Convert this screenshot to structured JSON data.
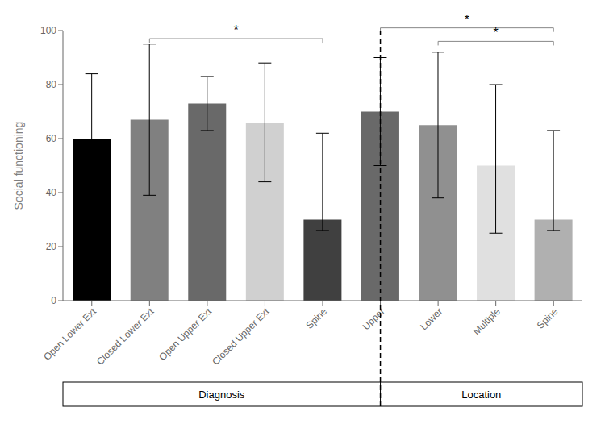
{
  "chart_data": {
    "type": "bar",
    "categories": [
      "Open Lower Ext",
      "Closed Lower Ext",
      "Open Upper Ext",
      "Closed Upper Ext",
      "Spine",
      "Upper",
      "Lower",
      "Multiple",
      "Spine"
    ],
    "values": [
      60,
      67,
      73,
      66,
      30,
      70,
      65,
      50,
      30
    ],
    "errors_upper": [
      24,
      28,
      10,
      22,
      32,
      20,
      27,
      30,
      33
    ],
    "errors_lower": [
      24,
      28,
      10,
      22,
      4,
      20,
      27,
      25,
      4
    ],
    "colors": [
      "#000000",
      "#808080",
      "#696969",
      "#d0d0d0",
      "#404040",
      "#696969",
      "#909090",
      "#e0e0e0",
      "#b0b0b0"
    ],
    "ylabel": "Social functioning",
    "ylim": [
      0,
      100
    ],
    "yticks": [
      0,
      20,
      40,
      60,
      80,
      100
    ],
    "grid": false,
    "groups": [
      {
        "label": "Diagnosis",
        "start": 0
      },
      {
        "label": "Location",
        "start": 5
      }
    ],
    "brackets": [
      {
        "from": 1,
        "to": 4,
        "y": 97,
        "text": "*",
        "color": "#888888"
      },
      {
        "from": 5,
        "to": 8,
        "y": 101,
        "text": "*",
        "color": "#888888"
      },
      {
        "from": 6,
        "to": 8,
        "y": 96,
        "text": "*",
        "color": "#888888"
      }
    ]
  }
}
